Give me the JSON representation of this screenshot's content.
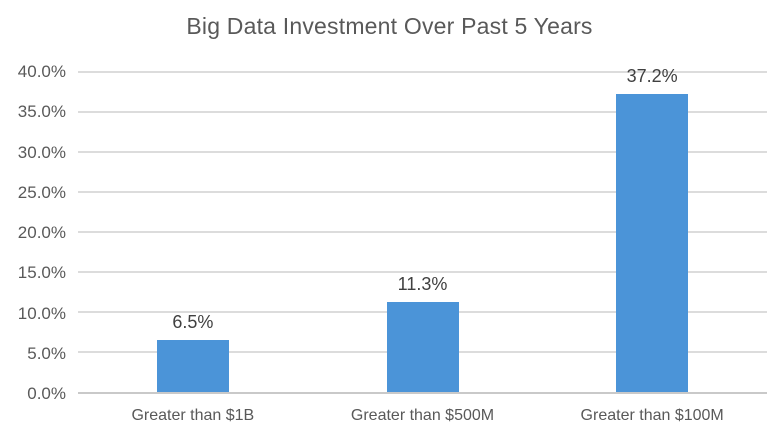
{
  "chart_data": {
    "type": "bar",
    "title": "Big Data Investment Over Past 5 Years",
    "categories": [
      "Greater than $1B",
      "Greater than $500M",
      "Greater than $100M"
    ],
    "values": [
      6.5,
      11.3,
      37.2
    ],
    "value_labels": [
      "6.5%",
      "11.3%",
      "37.2%"
    ],
    "xlabel": "",
    "ylabel": "",
    "ylim": [
      0,
      40
    ],
    "ytick_step": 5,
    "ytick_labels": [
      "0.0%",
      "5.0%",
      "10.0%",
      "15.0%",
      "20.0%",
      "25.0%",
      "30.0%",
      "35.0%",
      "40.0%"
    ],
    "grid": true,
    "legend": false
  },
  "colors": {
    "bar": "#4B94D8",
    "gridline": "#DCDCDC",
    "axis_line": "#C9C9C9",
    "title_text": "#595959",
    "tick_text": "#595959",
    "value_label_text": "#404040",
    "background": "#FFFFFF"
  }
}
